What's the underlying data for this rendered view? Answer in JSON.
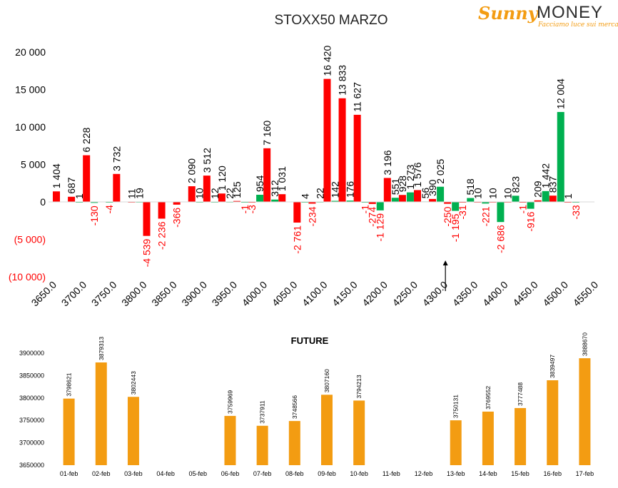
{
  "logo": {
    "brand_left": "Sunny",
    "brand_right": "MONEY",
    "tagline": "Facciamo luce sui mercati"
  },
  "chart_data": [
    {
      "type": "bar",
      "title": "STOXX50 MARZO",
      "xlabel": "",
      "ylabel": "",
      "ylim": [
        -10000,
        20000
      ],
      "yticks": [
        {
          "value": 20000,
          "label": "20 000"
        },
        {
          "value": 15000,
          "label": "15 000"
        },
        {
          "value": 10000,
          "label": "10 000"
        },
        {
          "value": 5000,
          "label": "5 000"
        },
        {
          "value": 0,
          "label": "0"
        },
        {
          "value": -5000,
          "label": "(5 000)"
        },
        {
          "value": -10000,
          "label": "(10 000)"
        }
      ],
      "xlim": [
        3650,
        4550
      ],
      "xticks": [
        "3650.0",
        "3700.0",
        "3750.0",
        "3800.0",
        "3850.0",
        "3900.0",
        "3950.0",
        "4000.0",
        "4050.0",
        "4100.0",
        "4150.0",
        "4200.0",
        "4250.0",
        "4300.0",
        "4350.0",
        "4400.0",
        "4450.0",
        "4500.0",
        "4550.0"
      ],
      "grid": false,
      "colors": {
        "calls": "#ff0000",
        "puts": "#00b050",
        "neg_label": "#ff0000",
        "pos_label": "#000000"
      },
      "annotations": [
        {
          "type": "arrow",
          "x": 4300,
          "y": -10000
        }
      ],
      "series": [
        {
          "key": "calls",
          "points": [
            {
              "x": 3650,
              "y": 1404,
              "label": "1 404"
            },
            {
              "x": 3675,
              "y": 687,
              "label": "687"
            },
            {
              "x": 3700,
              "y": 6228,
              "label": "6 228"
            },
            {
              "x": 3750,
              "y": 3732,
              "label": "3 732"
            },
            {
              "x": 3775,
              "y": 11,
              "label": "11"
            },
            {
              "x": 3800,
              "y": -4539,
              "label": "-4 539"
            },
            {
              "x": 3825,
              "y": -2236,
              "label": "-2 236"
            },
            {
              "x": 3850,
              "y": -366,
              "label": "-366"
            },
            {
              "x": 3875,
              "y": 2090,
              "label": "2 090"
            },
            {
              "x": 3900,
              "y": 3512,
              "label": "3 512"
            },
            {
              "x": 3925,
              "y": 1120,
              "label": "1 120"
            },
            {
              "x": 3950,
              "y": 125,
              "label": "125"
            },
            {
              "x": 3975,
              "y": -3,
              "label": "-3"
            },
            {
              "x": 4000,
              "y": 7160,
              "label": "7 160"
            },
            {
              "x": 4025,
              "y": 1031,
              "label": "1 031"
            },
            {
              "x": 4050,
              "y": -2761,
              "label": "-2 761"
            },
            {
              "x": 4075,
              "y": -234,
              "label": "-234"
            },
            {
              "x": 4100,
              "y": 16420,
              "label": "16 420"
            },
            {
              "x": 4125,
              "y": 13833,
              "label": "13 833"
            },
            {
              "x": 4150,
              "y": 11627,
              "label": "11 627"
            },
            {
              "x": 4175,
              "y": -274,
              "label": "-274"
            },
            {
              "x": 4200,
              "y": 3196,
              "label": "3 196"
            },
            {
              "x": 4225,
              "y": 928,
              "label": "928"
            },
            {
              "x": 4250,
              "y": 1576,
              "label": "1 576"
            },
            {
              "x": 4275,
              "y": 390,
              "label": "390"
            },
            {
              "x": 4300,
              "y": -250,
              "label": "-250"
            },
            {
              "x": 4325,
              "y": -31,
              "label": "-31"
            },
            {
              "x": 4350,
              "y": 10,
              "label": "10"
            },
            {
              "x": 4375,
              "y": 10,
              "label": "10"
            },
            {
              "x": 4400,
              "y": 10,
              "label": "10"
            },
            {
              "x": 4425,
              "y": -1,
              "label": "-1"
            },
            {
              "x": 4450,
              "y": 209,
              "label": "209"
            },
            {
              "x": 4475,
              "y": 837,
              "label": "837"
            },
            {
              "x": 4500,
              "y": 1,
              "label": "1"
            }
          ]
        },
        {
          "key": "puts",
          "points": [
            {
              "x": 3675,
              "y": 1,
              "label": "1"
            },
            {
              "x": 3700,
              "y": -130,
              "label": "-130"
            },
            {
              "x": 3725,
              "y": -4,
              "label": "-4"
            },
            {
              "x": 3775,
              "y": 19,
              "label": "19"
            },
            {
              "x": 3875,
              "y": 10,
              "label": "10"
            },
            {
              "x": 3900,
              "y": 12,
              "label": "12"
            },
            {
              "x": 3925,
              "y": 22,
              "label": "22"
            },
            {
              "x": 3950,
              "y": -1,
              "label": "-1"
            },
            {
              "x": 3975,
              "y": 954,
              "label": "954"
            },
            {
              "x": 4000,
              "y": 312,
              "label": "312"
            },
            {
              "x": 4050,
              "y": 4,
              "label": "4"
            },
            {
              "x": 4075,
              "y": 22,
              "label": "22"
            },
            {
              "x": 4100,
              "y": 142,
              "label": "142"
            },
            {
              "x": 4125,
              "y": 176,
              "label": "176"
            },
            {
              "x": 4150,
              "y": -1,
              "label": "-1"
            },
            {
              "x": 4175,
              "y": -1129,
              "label": "-1 129"
            },
            {
              "x": 4200,
              "y": 551,
              "label": "551"
            },
            {
              "x": 4225,
              "y": 1273,
              "label": "1 273"
            },
            {
              "x": 4250,
              "y": 56,
              "label": "56"
            },
            {
              "x": 4275,
              "y": 2025,
              "label": "2 025"
            },
            {
              "x": 4300,
              "y": -1195,
              "label": "-1 195"
            },
            {
              "x": 4325,
              "y": 518,
              "label": "518"
            },
            {
              "x": 4350,
              "y": -221,
              "label": "-221"
            },
            {
              "x": 4375,
              "y": -2686,
              "label": "-2 686"
            },
            {
              "x": 4400,
              "y": 823,
              "label": "823"
            },
            {
              "x": 4425,
              "y": -916,
              "label": "-916"
            },
            {
              "x": 4450,
              "y": 1442,
              "label": "1 442"
            },
            {
              "x": 4475,
              "y": 12004,
              "label": "12 004"
            },
            {
              "x": 4500,
              "y": -33,
              "label": "-33"
            }
          ]
        }
      ]
    },
    {
      "type": "bar",
      "title": "FUTURE",
      "xlabel": "",
      "ylabel": "",
      "ylim": [
        3650000,
        3900000
      ],
      "yticks": [
        {
          "value": 3900000,
          "label": "3900000"
        },
        {
          "value": 3850000,
          "label": "3850000"
        },
        {
          "value": 3800000,
          "label": "3800000"
        },
        {
          "value": 3750000,
          "label": "3750000"
        },
        {
          "value": 3700000,
          "label": "3700000"
        },
        {
          "value": 3650000,
          "label": "3650000"
        }
      ],
      "grid": false,
      "colors": {
        "bar": "#f39c12"
      },
      "categories": [
        "01-feb",
        "02-feb",
        "03-feb",
        "04-feb",
        "05-feb",
        "06-feb",
        "07-feb",
        "08-feb",
        "09-feb",
        "10-feb",
        "11-feb",
        "12-feb",
        "13-feb",
        "14-feb",
        "15-feb",
        "16-feb",
        "17-feb"
      ],
      "values": [
        3798621,
        3879313,
        3802443,
        null,
        null,
        3759969,
        3737911,
        3748566,
        3807160,
        3794213,
        null,
        null,
        3750131,
        3769552,
        3777488,
        3839497,
        3888670
      ],
      "value_labels": [
        "3798621",
        "3879313",
        "3802443",
        "",
        "",
        "3759969",
        "3737911",
        "3748566",
        "3807160",
        "3794213",
        "",
        "",
        "3750131",
        "3769552",
        "3777488",
        "3839497",
        "3888670"
      ]
    }
  ]
}
